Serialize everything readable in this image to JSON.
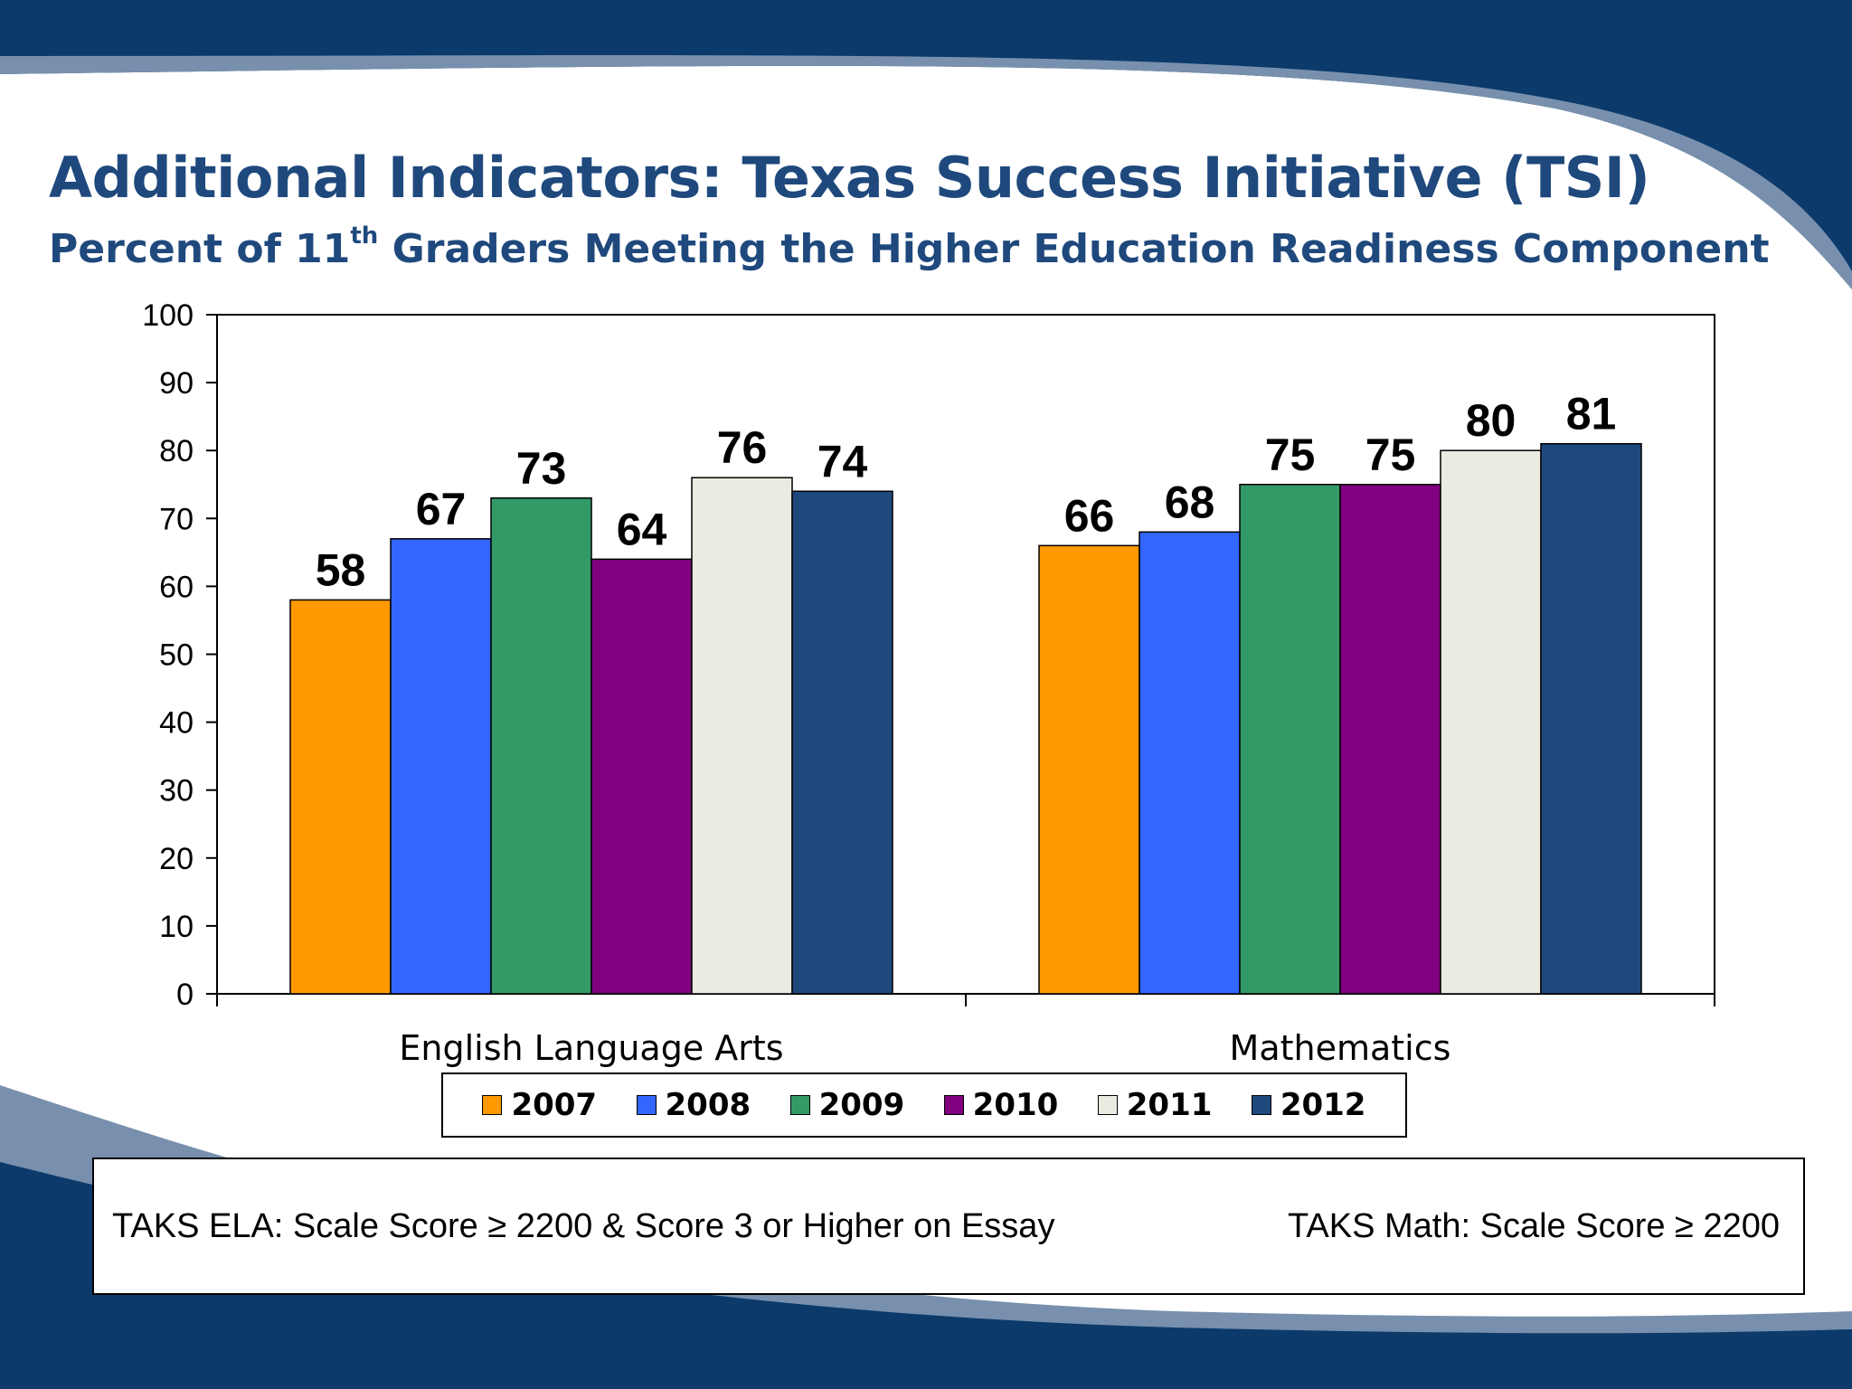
{
  "slide": {
    "title": "Additional Indicators: Texas Success Initiative (TSI)",
    "subtitle_before": "Percent of 11",
    "subtitle_sup": "th",
    "subtitle_after": " Graders Meeting the Higher Education Readiness Component",
    "colors": {
      "navy": "#0b3a6b",
      "title": "#1f497d",
      "swoosh_light": "#7890ad"
    }
  },
  "chart_data": {
    "type": "bar",
    "categories": [
      "English Language Arts",
      "Mathematics"
    ],
    "series": [
      {
        "name": "2007",
        "values": [
          58,
          66
        ],
        "color": "#ff9900"
      },
      {
        "name": "2008",
        "values": [
          67,
          68
        ],
        "color": "#3366ff"
      },
      {
        "name": "2009",
        "values": [
          73,
          75
        ],
        "color": "#339966"
      },
      {
        "name": "2010",
        "values": [
          64,
          75
        ],
        "color": "#800080"
      },
      {
        "name": "2011",
        "values": [
          76,
          80
        ],
        "color": "#ebebe1"
      },
      {
        "name": "2012",
        "values": [
          74,
          81
        ],
        "color": "#1f497d"
      }
    ],
    "ylim": [
      0,
      100
    ],
    "yticks": [
      0,
      10,
      20,
      30,
      40,
      50,
      60,
      70,
      80,
      90,
      100
    ],
    "grid": false,
    "data_labels": true,
    "legend": "bottom"
  },
  "notes": {
    "left": "TAKS ELA: Scale Score ≥ 2200 & Score 3 or Higher on Essay",
    "right": "TAKS Math: Scale Score ≥ 2200"
  }
}
